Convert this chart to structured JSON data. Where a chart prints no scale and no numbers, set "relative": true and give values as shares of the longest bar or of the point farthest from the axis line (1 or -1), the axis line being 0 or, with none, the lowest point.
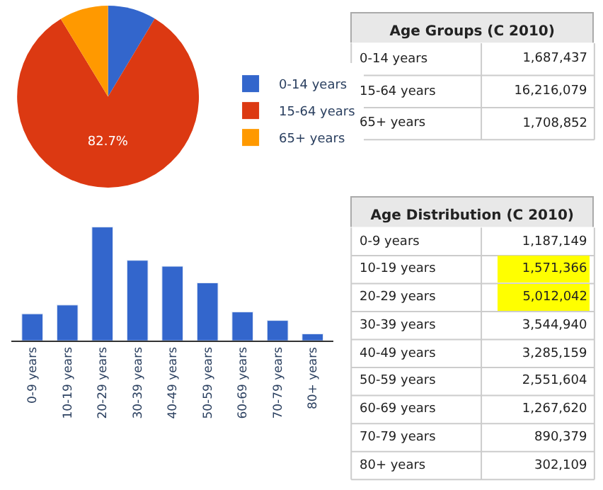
{
  "chart_data": [
    {
      "type": "pie",
      "categories": [
        "0-14 years",
        "15-64 years",
        "65+ years"
      ],
      "values": [
        8.6,
        82.7,
        8.7
      ],
      "colors": [
        "#3366cc",
        "#dc3912",
        "#ff9900"
      ],
      "value_labels": [
        null,
        "82.7%",
        null
      ],
      "legend": "right"
    },
    {
      "type": "other",
      "title": "Age Groups (C 2010)",
      "categories": [
        "0-14 years",
        "15-64 years",
        "65+ years"
      ],
      "values": [
        1687437,
        16216079,
        1708852
      ],
      "value_labels": [
        "1,687,437",
        "16,216,079",
        "1,708,852"
      ]
    },
    {
      "type": "bar",
      "relative": true,
      "categories": [
        "0-9 years",
        "10-19 years",
        "20-29 years",
        "30-39 years",
        "40-49 years",
        "50-59 years",
        "60-69 years",
        "70-79 years",
        "80+ years"
      ],
      "values": [
        0.237,
        0.314,
        1,
        0.707,
        0.655,
        0.509,
        0.253,
        0.178,
        0.06
      ],
      "color": "#3366cc"
    },
    {
      "type": "other",
      "title": "Age Distribution (C 2010)",
      "categories": [
        "0-9 years",
        "10-19 years",
        "20-29 years",
        "30-39 years",
        "40-49 years",
        "50-59 years",
        "60-69 years",
        "70-79 years",
        "80+ years"
      ],
      "values": [
        1187149,
        1571366,
        5012042,
        3544940,
        3285159,
        2551604,
        1267620,
        890379,
        302109
      ],
      "colors": [
        "#ffffff",
        "#ffff00",
        "#ffff00",
        "#ffffff",
        "#ffffff",
        "#ffffff",
        "#ffffff",
        "#ffffff",
        "#ffffff"
      ],
      "value_labels": [
        "1,187,149",
        "1,571,366",
        "5,012,042",
        "3,544,940",
        "3,285,159",
        "2,551,604",
        "1,267,620",
        "890,379",
        "302,109"
      ]
    }
  ]
}
